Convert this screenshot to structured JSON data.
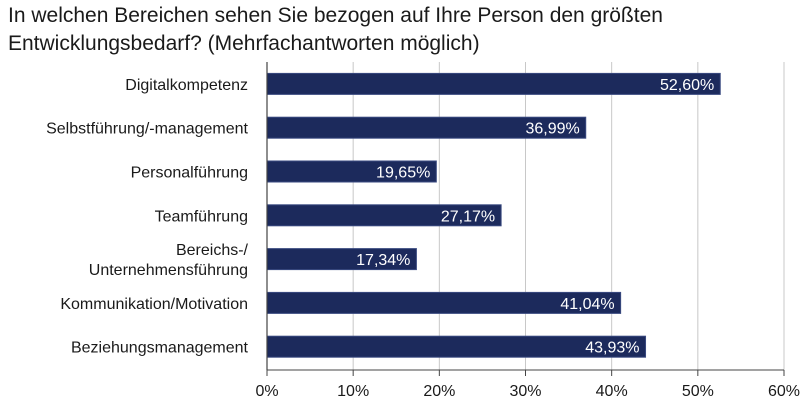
{
  "chart_data": {
    "type": "bar",
    "orientation": "horizontal",
    "title": "In welchen Bereichen sehen Sie bezogen auf Ihre Person den größten Entwicklungsbedarf? (Mehrfachantworten möglich)",
    "categories": [
      [
        "Digitalkompetenz"
      ],
      [
        "Selbstführung/-management"
      ],
      [
        "Personalführung"
      ],
      [
        "Teamführung"
      ],
      [
        "Bereichs-/",
        "Unternehmensführung"
      ],
      [
        "Kommunikation/Motivation"
      ],
      [
        "Beziehungsmanagement"
      ]
    ],
    "values": [
      52.6,
      36.99,
      19.65,
      27.17,
      17.34,
      41.04,
      43.93
    ],
    "data_labels": [
      "52,60%",
      "36,99%",
      "19,65%",
      "27,17%",
      "17,34%",
      "41,04%",
      "43,93%"
    ],
    "xlim": [
      0,
      60
    ],
    "xticks": [
      0,
      10,
      20,
      30,
      40,
      50,
      60
    ],
    "xtick_labels": [
      "0%",
      "10%",
      "20%",
      "30%",
      "40%",
      "50%",
      "60%"
    ],
    "grid": "vertical",
    "legend": "none",
    "colors": {
      "bar": "#1c2a5c",
      "bar_edge": "#3a4a80",
      "grid": "#c8c8c8",
      "axis": "#444444"
    }
  }
}
